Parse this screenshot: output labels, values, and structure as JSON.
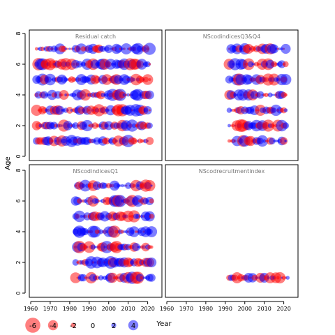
{
  "chart_data": {
    "type": "scatter",
    "ylabel": "Age",
    "xlabel": "Year",
    "xlim": [
      1960,
      2023
    ],
    "ylim": [
      0,
      8
    ],
    "x_ticks": [
      "1960",
      "1970",
      "1980",
      "1990",
      "2000",
      "2010",
      "2020"
    ],
    "y_ticks": [
      "0",
      "2",
      "4",
      "6",
      "8"
    ],
    "colors": {
      "positive": "#0000ff",
      "negative": "#ff0000"
    },
    "panels": [
      {
        "title": "Residual catch",
        "years": [
          1963,
          2021
        ],
        "ages": [
          1,
          2,
          3,
          4,
          5,
          6,
          7
        ]
      },
      {
        "title": "NScodindicesQ3&Q4",
        "years": [
          1992,
          2021
        ],
        "ages": [
          1,
          2,
          3,
          4,
          5,
          6,
          7
        ]
      },
      {
        "title": "NScodindicesQ1",
        "years": [
          1983,
          2022
        ],
        "ages": [
          1,
          2,
          3,
          4,
          5,
          6,
          7
        ]
      },
      {
        "title": "NScodrecruitmentindex",
        "years": [
          1992,
          2022
        ],
        "ages": [
          1
        ]
      }
    ],
    "legend": {
      "values": [
        -6,
        -4,
        -2,
        0,
        2,
        4
      ],
      "labels": [
        "-6",
        "-4",
        "-2",
        "0",
        "2",
        "4"
      ]
    }
  }
}
